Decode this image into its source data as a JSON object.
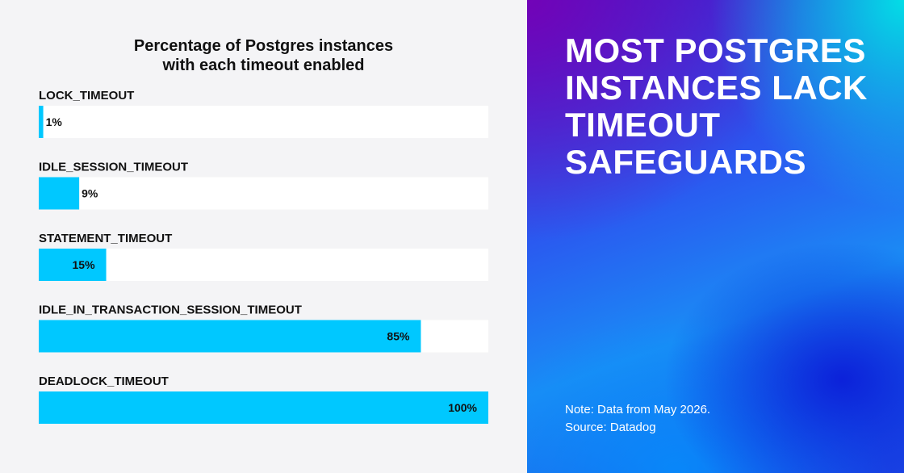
{
  "left_panel": {
    "background": "#f4f4f6"
  },
  "right_panel": {
    "headline_lines": [
      "MOST POSTGRES",
      "INSTANCES LACK",
      "TIMEOUT",
      "SAFEGUARDS"
    ],
    "note": "Note: Data from May 2026.",
    "source": "Source: Datadog",
    "gradient_colors": [
      "#7800b4",
      "#00e6e6",
      "#1a8cf5",
      "#0a19d7"
    ]
  },
  "chart_data": {
    "type": "bar",
    "orientation": "horizontal",
    "title_lines": [
      "Percentage of Postgres instances",
      "with each timeout enabled"
    ],
    "categories": [
      "LOCK_TIMEOUT",
      "IDLE_SESSION_TIMEOUT",
      "STATEMENT_TIMEOUT",
      "IDLE_IN_TRANSACTION_SESSION_TIMEOUT",
      "DEADLOCK_TIMEOUT"
    ],
    "values": [
      1,
      9,
      15,
      85,
      100
    ],
    "value_labels": [
      "1%",
      "9%",
      "15%",
      "85%",
      "100%"
    ],
    "unit": "%",
    "xlim": [
      0,
      100
    ],
    "grid": false,
    "legend": "none",
    "bar_color": "#00c8ff",
    "track_color": "#ffffff",
    "label_color": "#111111"
  }
}
